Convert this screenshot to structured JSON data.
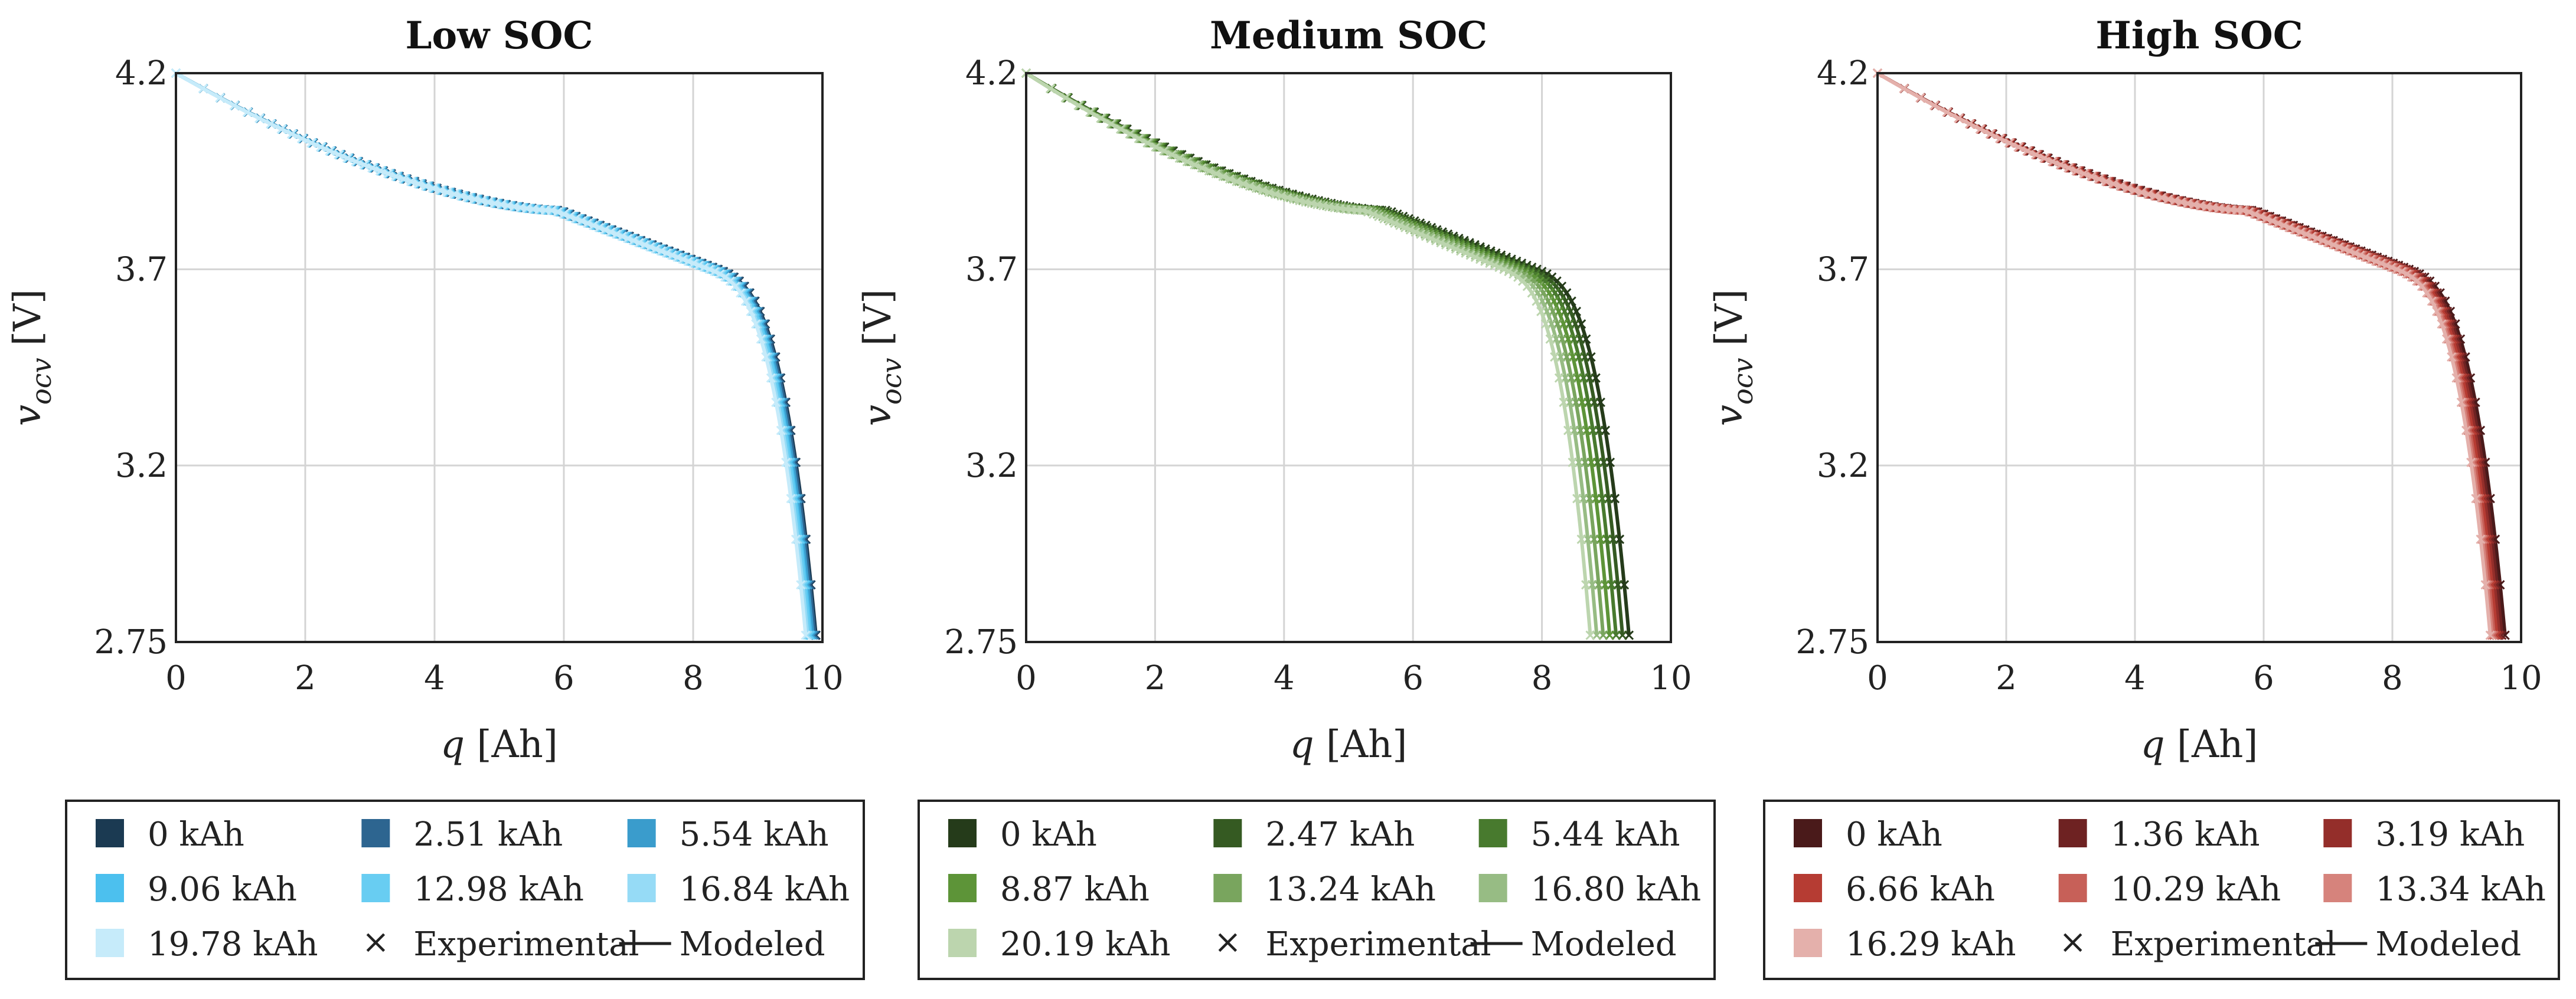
{
  "chart_data": [
    {
      "type": "line",
      "title": "Low SOC",
      "xlabel": "q [Ah]",
      "ylabel": "v_ocv [V]",
      "xlim": [
        0,
        10
      ],
      "ylim": [
        2.75,
        4.2
      ],
      "xticks": [
        "0",
        "2",
        "4",
        "6",
        "8",
        "10"
      ],
      "yticks": [
        "2.75",
        "3.2",
        "3.7",
        "4.2"
      ],
      "grid": true,
      "legend_location": "below",
      "series": [
        {
          "name": "0 kAh",
          "color": "#1b3a52",
          "capacity": 9.9
        },
        {
          "name": "2.51 kAh",
          "color": "#2d6590",
          "capacity": 9.88
        },
        {
          "name": "5.54 kAh",
          "color": "#3a9ccc",
          "capacity": 9.85
        },
        {
          "name": "9.06 kAh",
          "color": "#4cc0ee",
          "capacity": 9.82
        },
        {
          "name": "12.98 kAh",
          "color": "#68cdf2",
          "capacity": 9.8
        },
        {
          "name": "16.84 kAh",
          "color": "#96dbf6",
          "capacity": 9.77
        },
        {
          "name": "19.78 kAh",
          "color": "#c6ebfa",
          "capacity": 9.74
        }
      ],
      "legend_extra": [
        {
          "marker": "×",
          "label": "Experimental"
        },
        {
          "marker": "line",
          "label": "Modeled"
        }
      ]
    },
    {
      "type": "line",
      "title": "Medium SOC",
      "xlabel": "q [Ah]",
      "ylabel": "v_ocv [V]",
      "xlim": [
        0,
        10
      ],
      "ylim": [
        2.75,
        4.2
      ],
      "xticks": [
        "0",
        "2",
        "4",
        "6",
        "8",
        "10"
      ],
      "yticks": [
        "2.75",
        "3.2",
        "3.7",
        "4.2"
      ],
      "grid": true,
      "legend_location": "below",
      "series": [
        {
          "name": "0 kAh",
          "color": "#253b1a",
          "capacity": 9.35
        },
        {
          "name": "2.47 kAh",
          "color": "#355a22",
          "capacity": 9.25
        },
        {
          "name": "5.44 kAh",
          "color": "#487a2e",
          "capacity": 9.15
        },
        {
          "name": "8.87 kAh",
          "color": "#5d9438",
          "capacity": 9.05
        },
        {
          "name": "13.24 kAh",
          "color": "#79a55e",
          "capacity": 8.95
        },
        {
          "name": "16.80 kAh",
          "color": "#97bc84",
          "capacity": 8.85
        },
        {
          "name": "20.19 kAh",
          "color": "#bcd5ae",
          "capacity": 8.75
        }
      ],
      "legend_extra": [
        {
          "marker": "×",
          "label": "Experimental"
        },
        {
          "marker": "line",
          "label": "Modeled"
        }
      ]
    },
    {
      "type": "line",
      "title": "High SOC",
      "xlabel": "q [Ah]",
      "ylabel": "v_ocv [V]",
      "xlim": [
        0,
        10
      ],
      "ylim": [
        2.75,
        4.2
      ],
      "xticks": [
        "0",
        "2",
        "4",
        "6",
        "8",
        "10"
      ],
      "yticks": [
        "2.75",
        "3.2",
        "3.7",
        "4.2"
      ],
      "grid": true,
      "legend_location": "below",
      "series": [
        {
          "name": "0 kAh",
          "color": "#4a1a1a",
          "capacity": 9.75
        },
        {
          "name": "1.36 kAh",
          "color": "#6e2222",
          "capacity": 9.7
        },
        {
          "name": "3.19 kAh",
          "color": "#942e2a",
          "capacity": 9.66
        },
        {
          "name": "6.66 kAh",
          "color": "#b63c33",
          "capacity": 9.62
        },
        {
          "name": "10.29 kAh",
          "color": "#c76058",
          "capacity": 9.58
        },
        {
          "name": "13.34 kAh",
          "color": "#d6837c",
          "capacity": 9.55
        },
        {
          "name": "16.29 kAh",
          "color": "#e4b0ab",
          "capacity": 9.52
        }
      ],
      "legend_extra": [
        {
          "marker": "×",
          "label": "Experimental"
        },
        {
          "marker": "line",
          "label": "Modeled"
        }
      ]
    }
  ]
}
